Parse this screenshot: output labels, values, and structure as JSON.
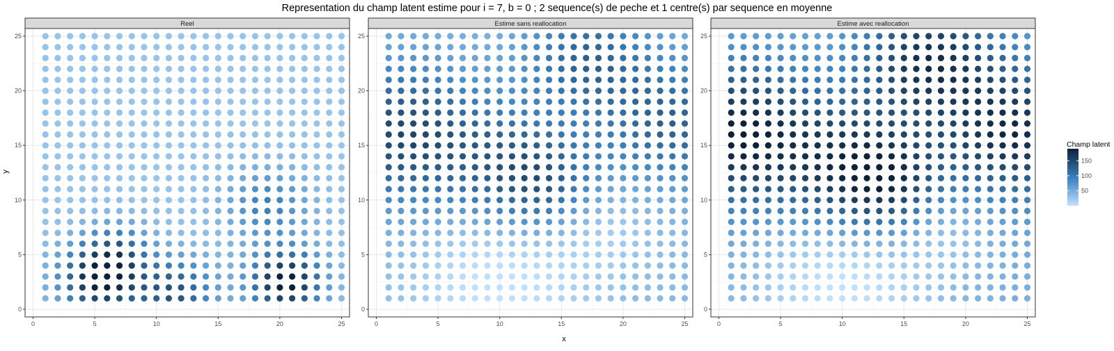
{
  "title": "Representation du champ latent estime pour i = 7, b = 0 ; 2 sequence(s) de peche et 1 centre(s) par sequence en moyenne",
  "xlabel": "x",
  "ylabel": "y",
  "chart_data": {
    "type": "scatter",
    "grid_spec": {
      "x_from": 1,
      "x_to": 25,
      "y_from": 1,
      "y_to": 25,
      "step": 1
    },
    "xlim": [
      0,
      25
    ],
    "ylim": [
      0,
      25
    ],
    "xticks": [
      0,
      5,
      10,
      15,
      20,
      25
    ],
    "yticks": [
      0,
      5,
      10,
      15,
      20,
      25
    ],
    "grid": true,
    "legend": {
      "title": "Champ latent",
      "position": "right",
      "ticks": [
        50,
        100,
        150
      ],
      "range": [
        0,
        190
      ],
      "colors": {
        "low": "#bfe1ff",
        "mid": "#3f88c5",
        "high": "#0c2238"
      }
    },
    "panels": [
      {
        "label": "Reel",
        "base": 28,
        "spots": [
          {
            "x": 5.5,
            "y": 2.8,
            "amplitude": 170,
            "radius": 2.2
          },
          {
            "x": 20.5,
            "y": 2.5,
            "amplitude": 170,
            "radius": 2.0
          },
          {
            "x": 11.5,
            "y": 1.5,
            "amplitude": 110,
            "radius": 2.2
          },
          {
            "x": 19,
            "y": 9.5,
            "amplitude": 65,
            "radius": 2.3
          },
          {
            "x": 7,
            "y": 5.5,
            "amplitude": 60,
            "radius": 1.8
          }
        ]
      },
      {
        "label": "Estime sans reallocation",
        "base": 38,
        "spots": [
          {
            "x": 2,
            "y": 16,
            "amplitude": 110,
            "radius": 4.5
          },
          {
            "x": 11,
            "y": 13,
            "amplitude": 75,
            "radius": 4.0
          },
          {
            "x": 17,
            "y": 23,
            "amplitude": 80,
            "radius": 3.5
          },
          {
            "x": 24,
            "y": 17,
            "amplitude": 85,
            "radius": 4.0
          },
          {
            "x": 14,
            "y": 11,
            "amplitude": 55,
            "radius": 3.0
          },
          {
            "x": 10,
            "y": 3,
            "amplitude": -45,
            "radius": 5.0
          },
          {
            "x": 18,
            "y": 8,
            "amplitude": -25,
            "radius": 3.0
          }
        ]
      },
      {
        "label": "Estime avec reallocation",
        "base": 48,
        "spots": [
          {
            "x": 1.5,
            "y": 16,
            "amplitude": 140,
            "radius": 4.5
          },
          {
            "x": 11,
            "y": 13,
            "amplitude": 110,
            "radius": 4.2
          },
          {
            "x": 17,
            "y": 23,
            "amplitude": 120,
            "radius": 3.8
          },
          {
            "x": 24,
            "y": 16,
            "amplitude": 130,
            "radius": 4.2
          },
          {
            "x": 14,
            "y": 11,
            "amplitude": 70,
            "radius": 3.0
          },
          {
            "x": 10,
            "y": 3,
            "amplitude": -55,
            "radius": 5.0
          },
          {
            "x": 18,
            "y": 8,
            "amplitude": -30,
            "radius": 3.0
          }
        ]
      }
    ]
  }
}
